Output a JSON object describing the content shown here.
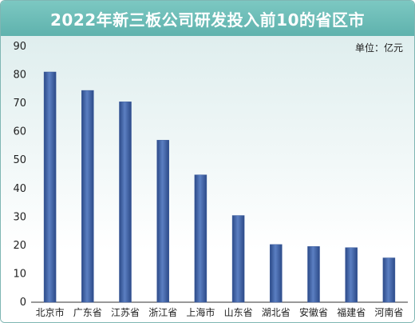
{
  "chart_data": {
    "type": "bar",
    "title": "2022年新三板公司研发投入前10的省区市",
    "unit_label": "单位：亿元",
    "categories": [
      "北京市",
      "广东省",
      "江苏省",
      "浙江省",
      "上海市",
      "山东省",
      "湖北省",
      "安徽省",
      "福建省",
      "河南省"
    ],
    "values": [
      81,
      74.5,
      70.5,
      57,
      44.8,
      30.5,
      20.3,
      19.6,
      19.2,
      15.6
    ],
    "ylim": [
      0,
      90
    ],
    "yticks": [
      0,
      10,
      20,
      30,
      40,
      50,
      60,
      70,
      80,
      90
    ],
    "bar_color": "#3a5a9c"
  }
}
